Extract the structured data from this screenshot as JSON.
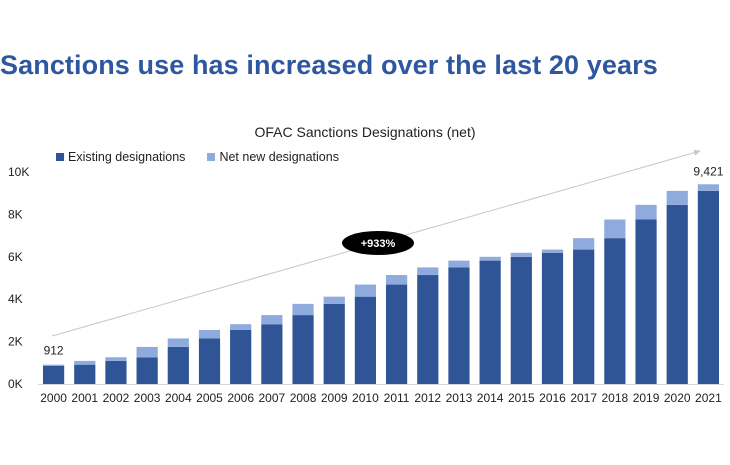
{
  "headline": "Sanctions use has increased over the last 20 years",
  "colors": {
    "existing": "#2f5597",
    "net_new": "#8faadc",
    "headline": "#2f57a0",
    "arrow": "#c8c8c8",
    "badge": "#000000"
  },
  "chart_data": {
    "type": "bar",
    "stacked": true,
    "title": "OFAC Sanctions Designations (net)",
    "categories": [
      "2000",
      "2001",
      "2002",
      "2003",
      "2004",
      "2005",
      "2006",
      "2007",
      "2008",
      "2009",
      "2010",
      "2011",
      "2012",
      "2013",
      "2014",
      "2015",
      "2016",
      "2017",
      "2018",
      "2019",
      "2020",
      "2021"
    ],
    "series": [
      {
        "name": "Existing designations",
        "values": [
          850,
          912,
          1090,
          1260,
          1750,
          2150,
          2550,
          2820,
          3250,
          3780,
          4120,
          4690,
          5140,
          5500,
          5820,
          6000,
          6190,
          6340,
          6880,
          7760,
          8450,
          9110
        ]
      },
      {
        "name": "Net new designations",
        "values": [
          62,
          178,
          170,
          490,
          400,
          400,
          270,
          430,
          530,
          340,
          570,
          450,
          360,
          320,
          180,
          190,
          150,
          540,
          880,
          690,
          660,
          311
        ]
      }
    ],
    "ylim": [
      0,
      10000
    ],
    "yticks": [
      0,
      2000,
      4000,
      6000,
      8000,
      10000
    ],
    "ytick_labels": [
      "0K",
      "2K",
      "4K",
      "6K",
      "8K",
      "10K"
    ],
    "grid": false,
    "legend_position": "top-left",
    "annotations": {
      "first_total": "912",
      "last_total": "9,421",
      "growth": "+933%"
    }
  }
}
